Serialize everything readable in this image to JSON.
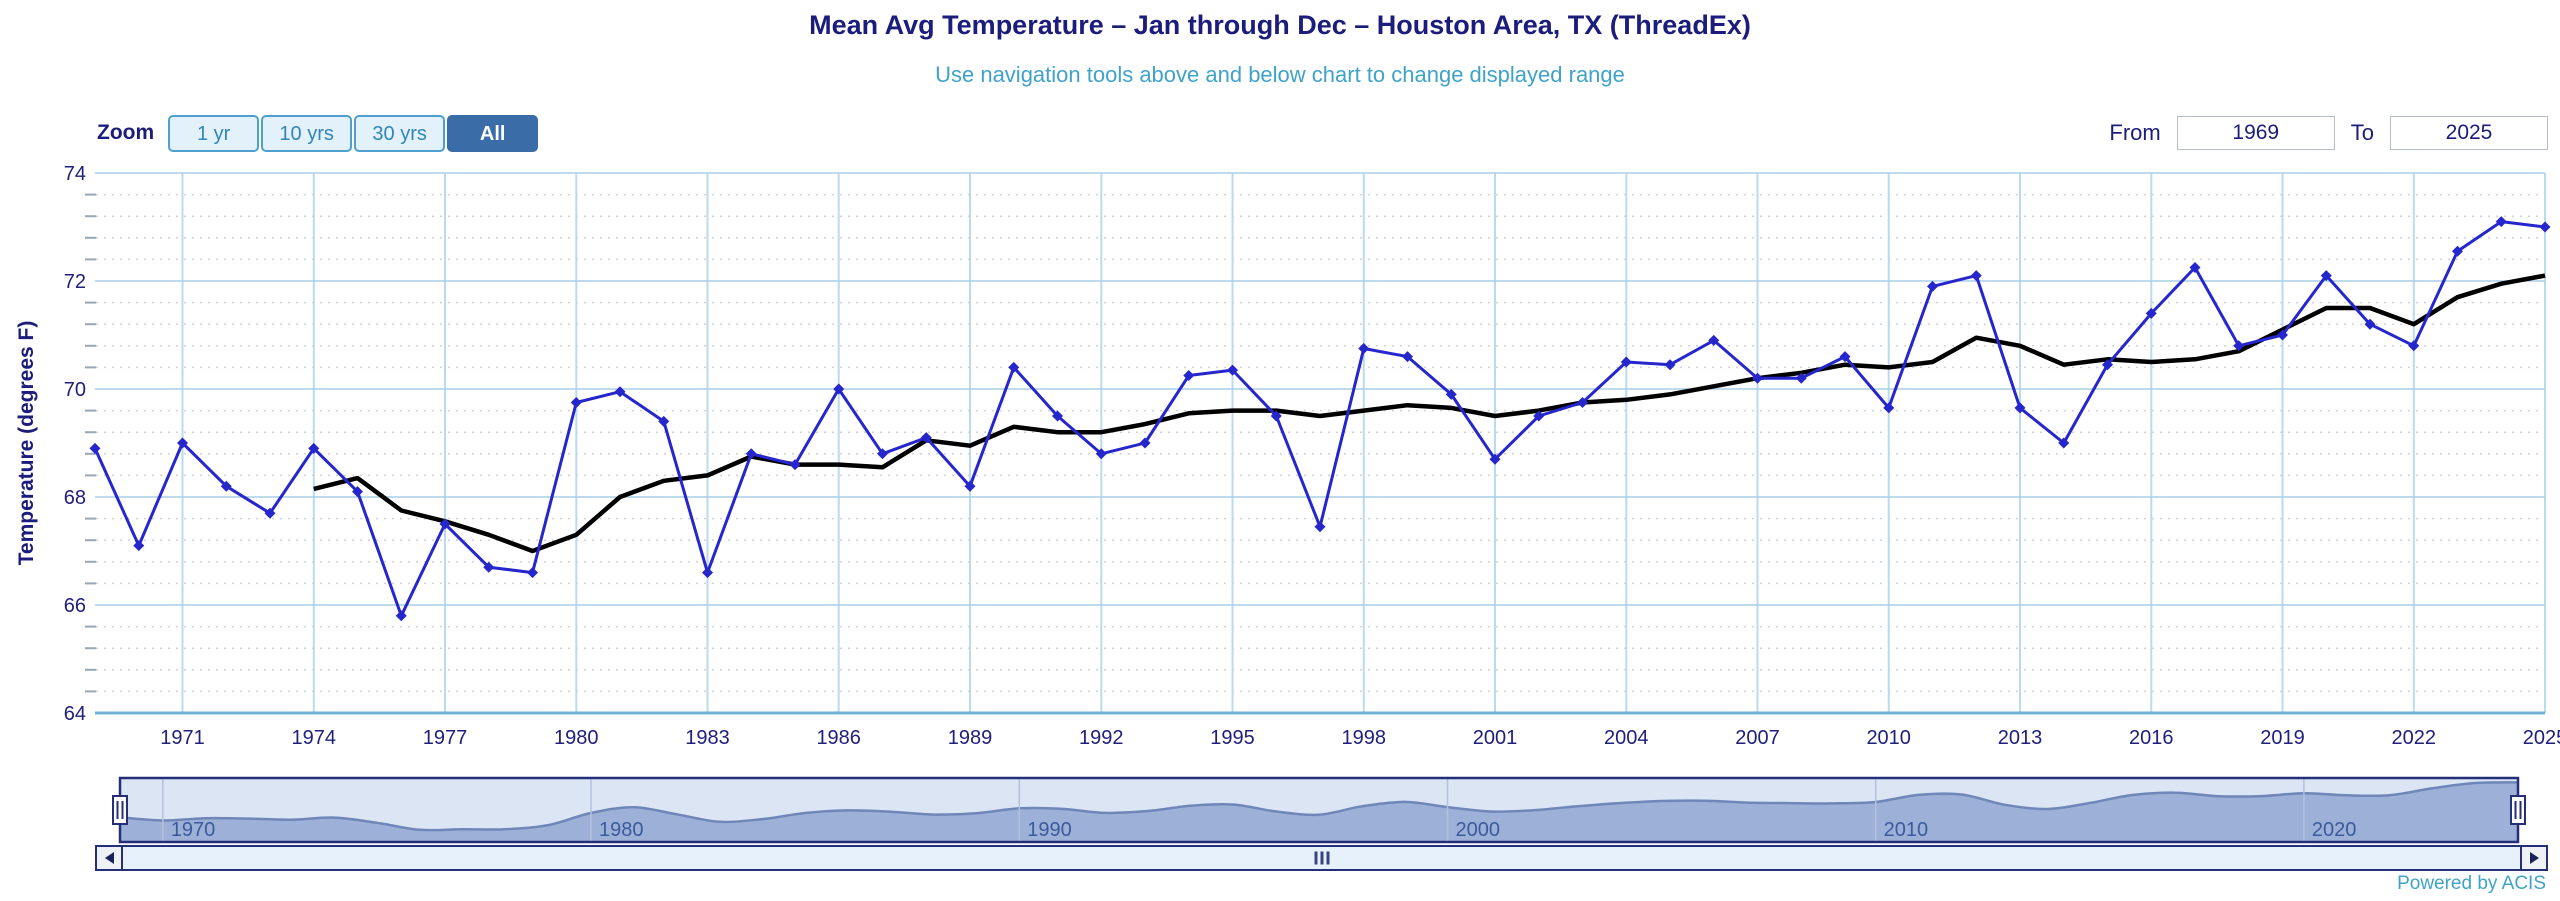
{
  "header": {
    "title": "Mean Avg Temperature – Jan through Dec – Houston Area, TX (ThreadEx)",
    "subtitle": "Use navigation tools above and below chart to change displayed range"
  },
  "toolbar": {
    "zoom_label": "Zoom",
    "buttons": [
      {
        "label": "1 yr",
        "active": false
      },
      {
        "label": "10 yrs",
        "active": false
      },
      {
        "label": "30 yrs",
        "active": false
      },
      {
        "label": "All",
        "active": true
      }
    ],
    "from_label": "From",
    "from_value": "1969",
    "to_label": "To",
    "to_value": "2025"
  },
  "footer": {
    "credit": "Powered by ACIS"
  },
  "colors": {
    "title_navy": "#1c1c7c",
    "subtitle_blue": "#3fa3c8",
    "series_blue": "#2626cd",
    "trend_black": "#000000",
    "grid_major_h": "#a9cfe7",
    "grid_major_v": "#b9daf0",
    "grid_minor": "#ccd3da",
    "axis_line": "#70b2d8",
    "axis_text": "#20207c",
    "button_active_bg": "#3a6da7",
    "button_light_bg": "#e3f1fb",
    "button_border": "#4da0ce",
    "nav_bg": "#dbe5f4",
    "nav_fill": "#9db1d8",
    "nav_stroke": "#6f86b8",
    "nav_border": "#252f78",
    "nav_label": "#3b5a9c"
  },
  "chart_data": {
    "type": "line",
    "title": "Mean Avg Temperature – Jan through Dec – Houston Area, TX (ThreadEx)",
    "xlabel": "",
    "ylabel": "Temperature (degrees F)",
    "xlim": [
      1969,
      2025
    ],
    "ylim": [
      64,
      74
    ],
    "x_ticks": [
      1971,
      1974,
      1977,
      1980,
      1983,
      1986,
      1989,
      1992,
      1995,
      1998,
      2001,
      2004,
      2007,
      2010,
      2013,
      2016,
      2019,
      2022,
      2025
    ],
    "y_ticks": [
      64,
      66,
      68,
      70,
      72,
      74
    ],
    "y_minor_step": 0.4,
    "grid": true,
    "legend": false,
    "years": [
      1969,
      1970,
      1971,
      1972,
      1973,
      1974,
      1975,
      1976,
      1977,
      1978,
      1979,
      1980,
      1981,
      1982,
      1983,
      1984,
      1985,
      1986,
      1987,
      1988,
      1989,
      1990,
      1991,
      1992,
      1993,
      1994,
      1995,
      1996,
      1997,
      1998,
      1999,
      2000,
      2001,
      2002,
      2003,
      2004,
      2005,
      2006,
      2007,
      2008,
      2009,
      2010,
      2011,
      2012,
      2013,
      2014,
      2015,
      2016,
      2017,
      2018,
      2019,
      2020,
      2021,
      2022,
      2023,
      2024,
      2025
    ],
    "series": [
      {
        "name": "annual_mean_temp",
        "marker": "diamond",
        "color": "#2626cd",
        "values": [
          68.9,
          67.1,
          69.0,
          68.2,
          67.7,
          68.9,
          68.1,
          65.8,
          67.5,
          66.7,
          66.6,
          69.75,
          69.95,
          69.4,
          66.6,
          68.8,
          68.6,
          70.0,
          68.8,
          69.1,
          68.2,
          70.4,
          69.5,
          68.8,
          69.0,
          70.25,
          70.35,
          69.5,
          67.45,
          70.75,
          70.6,
          69.9,
          68.7,
          69.5,
          69.75,
          70.5,
          70.45,
          70.9,
          70.2,
          70.2,
          70.6,
          69.65,
          71.9,
          72.1,
          69.65,
          69.0,
          70.45,
          71.4,
          72.25,
          70.8,
          71.0,
          72.1,
          71.2,
          70.8,
          72.55,
          73.1,
          73.0
        ]
      },
      {
        "name": "smoothed_trend",
        "marker": "none",
        "color": "#000000",
        "values": [
          null,
          null,
          null,
          null,
          null,
          68.15,
          68.35,
          67.75,
          67.55,
          67.3,
          67.0,
          67.3,
          68.0,
          68.3,
          68.4,
          68.75,
          68.6,
          68.6,
          68.55,
          69.05,
          68.95,
          69.3,
          69.2,
          69.2,
          69.35,
          69.55,
          69.6,
          69.6,
          69.5,
          69.6,
          69.7,
          69.65,
          69.5,
          69.6,
          69.75,
          69.8,
          69.9,
          70.05,
          70.2,
          70.3,
          70.45,
          70.4,
          70.5,
          70.95,
          70.8,
          70.45,
          70.55,
          70.5,
          70.55,
          70.7,
          71.1,
          71.5,
          71.5,
          71.2,
          71.7,
          71.95,
          72.1
        ]
      }
    ],
    "navigator": {
      "decade_labels": [
        "1970",
        "1980",
        "1990",
        "2000",
        "2010",
        "2020"
      ],
      "decade_years": [
        1970,
        1980,
        1990,
        2000,
        2010,
        2020
      ]
    }
  }
}
